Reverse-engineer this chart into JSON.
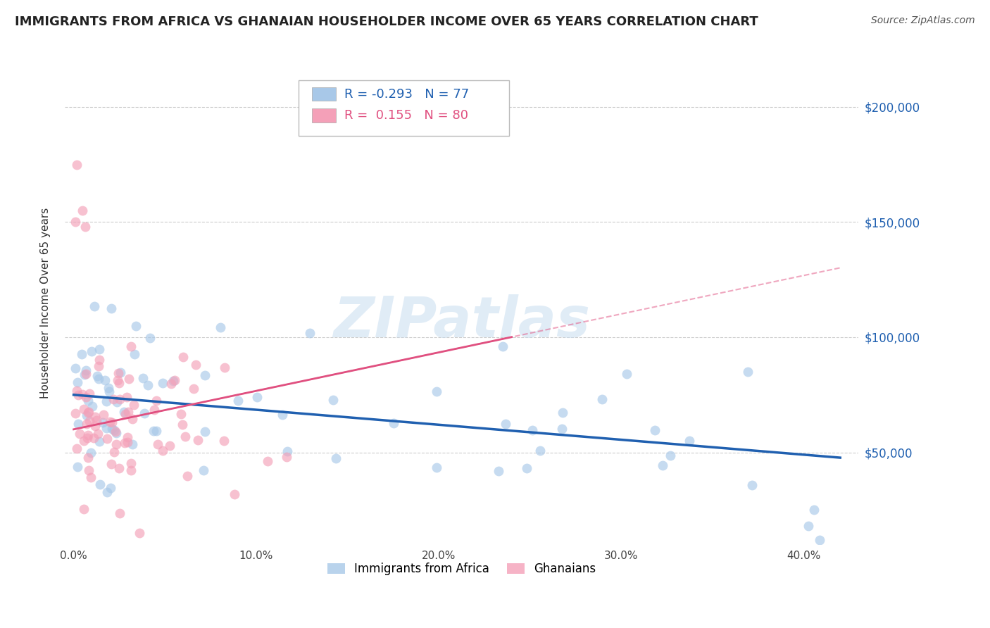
{
  "title": "IMMIGRANTS FROM AFRICA VS GHANAIAN HOUSEHOLDER INCOME OVER 65 YEARS CORRELATION CHART",
  "source": "Source: ZipAtlas.com",
  "ylabel": "Householder Income Over 65 years",
  "r_africa": -0.293,
  "n_africa": 77,
  "r_ghana": 0.155,
  "n_ghana": 80,
  "color_africa": "#a8c8e8",
  "color_ghana": "#f4a0b8",
  "line_color_africa": "#2060b0",
  "line_color_ghana": "#e05080",
  "background_color": "#ffffff",
  "grid_color": "#cccccc",
  "ytick_labels": [
    "$50,000",
    "$100,000",
    "$150,000",
    "$200,000"
  ],
  "ytick_values": [
    50000,
    100000,
    150000,
    200000
  ],
  "xtick_labels": [
    "0.0%",
    "",
    "10.0%",
    "",
    "20.0%",
    "",
    "30.0%",
    "",
    "40.0%"
  ],
  "xtick_values": [
    0.0,
    0.05,
    0.1,
    0.15,
    0.2,
    0.25,
    0.3,
    0.35,
    0.4
  ],
  "xlim": [
    -0.005,
    0.43
  ],
  "ylim": [
    10000,
    220000
  ],
  "watermark": "ZIPatlas",
  "legend_r_africa": "R = -0.293",
  "legend_n_africa": "N = 77",
  "legend_r_ghana": "R =  0.155",
  "legend_n_ghana": "N = 80"
}
